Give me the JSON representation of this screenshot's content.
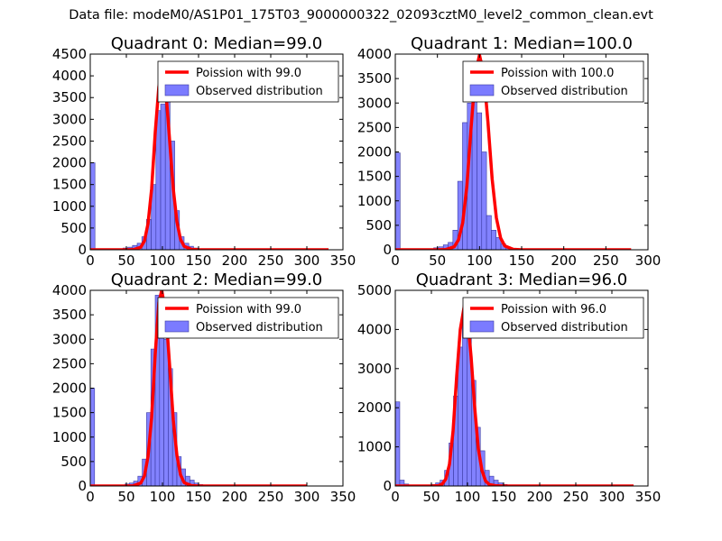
{
  "figure": {
    "suptitle": "Data file: modeM0/AS1P01_175T03_9000000322_02093cztM0_level2_common_clean.evt"
  },
  "colors": {
    "poisson_line": "#ff0000",
    "hist_fill": "#7b7bff",
    "hist_edge": "#3a3aa0"
  },
  "chart_data": [
    {
      "type": "bar",
      "title": "Quadrant 0: Median=99.0",
      "xlabel": "",
      "ylabel": "",
      "xlim": [
        0,
        350
      ],
      "ylim": [
        0,
        4500
      ],
      "xticks": [
        0,
        50,
        100,
        150,
        200,
        250,
        300,
        350
      ],
      "yticks": [
        0,
        500,
        1000,
        1500,
        2000,
        2500,
        3000,
        3500,
        4000,
        4500
      ],
      "legend_position": "top-right",
      "bin_width": 6.5,
      "series": [
        {
          "name": "Observed distribution",
          "type": "histogram",
          "x": [
            0,
            6.5,
            13,
            19.5,
            26,
            32.5,
            39,
            45.5,
            52,
            58.5,
            65,
            71.5,
            78,
            84.5,
            91,
            97.5,
            104,
            110.5,
            117,
            123.5,
            130,
            136.5,
            143,
            149.5,
            156,
            162.5,
            169,
            175.5
          ],
          "values": [
            2000,
            10,
            5,
            5,
            5,
            10,
            20,
            40,
            60,
            100,
            150,
            300,
            700,
            1500,
            3200,
            3350,
            3500,
            2500,
            900,
            300,
            150,
            80,
            40,
            20,
            10,
            5,
            3,
            2
          ]
        },
        {
          "name": "Poission with 99.0",
          "type": "line",
          "x": [
            0,
            50,
            60,
            70,
            75,
            80,
            85,
            90,
            95,
            99,
            105,
            110,
            115,
            120,
            125,
            130,
            140,
            150,
            200,
            250,
            300,
            330
          ],
          "values": [
            0,
            0,
            5,
            60,
            200,
            600,
            1400,
            2700,
            3750,
            4100,
            3600,
            2500,
            1400,
            650,
            240,
            80,
            10,
            0,
            0,
            0,
            0,
            0
          ]
        }
      ]
    },
    {
      "type": "bar",
      "title": "Quadrant 1: Median=100.0",
      "xlabel": "",
      "ylabel": "",
      "xlim": [
        0,
        300
      ],
      "ylim": [
        0,
        4000
      ],
      "xticks": [
        0,
        50,
        100,
        150,
        200,
        250,
        300
      ],
      "yticks": [
        0,
        500,
        1000,
        1500,
        2000,
        2500,
        3000,
        3500,
        4000
      ],
      "legend_position": "top-right",
      "bin_width": 5.7,
      "series": [
        {
          "name": "Observed distribution",
          "type": "histogram",
          "x": [
            0,
            5.7,
            11.4,
            17.1,
            22.8,
            28.5,
            34.2,
            39.9,
            45.6,
            51.3,
            57,
            62.7,
            68.4,
            74.1,
            79.8,
            85.5,
            91.2,
            96.9,
            102.6,
            108.3,
            114,
            119.7,
            125.4,
            131.1,
            136.8,
            142.5,
            148.2,
            153.9
          ],
          "values": [
            1980,
            10,
            5,
            5,
            5,
            5,
            10,
            20,
            40,
            60,
            100,
            150,
            400,
            1400,
            2600,
            3000,
            3500,
            2800,
            2000,
            700,
            400,
            250,
            120,
            60,
            30,
            15,
            8,
            5
          ]
        },
        {
          "name": "Poission with 100.0",
          "type": "line",
          "x": [
            0,
            50,
            60,
            70,
            75,
            80,
            85,
            90,
            95,
            100,
            105,
            110,
            115,
            120,
            125,
            130,
            140,
            150,
            200,
            280
          ],
          "values": [
            0,
            0,
            5,
            60,
            200,
            550,
            1300,
            2500,
            3600,
            3980,
            3600,
            2600,
            1450,
            650,
            240,
            80,
            10,
            0,
            0,
            0
          ]
        }
      ]
    },
    {
      "type": "bar",
      "title": "Quadrant 2: Median=99.0",
      "xlabel": "",
      "ylabel": "",
      "xlim": [
        0,
        350
      ],
      "ylim": [
        0,
        4000
      ],
      "xticks": [
        0,
        50,
        100,
        150,
        200,
        250,
        300,
        350
      ],
      "yticks": [
        0,
        500,
        1000,
        1500,
        2000,
        2500,
        3000,
        3500,
        4000
      ],
      "legend_position": "top-right",
      "bin_width": 6.0,
      "series": [
        {
          "name": "Observed distribution",
          "type": "histogram",
          "x": [
            0,
            6,
            12,
            18,
            24,
            30,
            36,
            42,
            48,
            54,
            60,
            66,
            72,
            78,
            84,
            90,
            96,
            102,
            108,
            114,
            120,
            126,
            132,
            138,
            144,
            150,
            156,
            162
          ],
          "values": [
            2000,
            10,
            5,
            5,
            5,
            5,
            10,
            20,
            40,
            60,
            100,
            200,
            550,
            1500,
            2800,
            3900,
            3700,
            3000,
            2400,
            1500,
            600,
            350,
            200,
            120,
            60,
            30,
            15,
            8
          ]
        },
        {
          "name": "Poission with 99.0",
          "type": "line",
          "x": [
            0,
            50,
            60,
            70,
            75,
            80,
            85,
            90,
            95,
            99,
            105,
            110,
            115,
            120,
            125,
            130,
            140,
            150,
            200,
            300
          ],
          "values": [
            0,
            0,
            5,
            60,
            200,
            600,
            1400,
            2700,
            3750,
            4000,
            3500,
            2450,
            1350,
            630,
            230,
            70,
            10,
            0,
            0,
            0
          ]
        }
      ]
    },
    {
      "type": "bar",
      "title": "Quadrant 3: Median=96.0",
      "xlabel": "",
      "ylabel": "",
      "xlim": [
        0,
        350
      ],
      "ylim": [
        0,
        5000
      ],
      "xticks": [
        0,
        50,
        100,
        150,
        200,
        250,
        300,
        350
      ],
      "yticks": [
        0,
        1000,
        2000,
        3000,
        4000,
        5000
      ],
      "legend_position": "top-right",
      "bin_width": 6.2,
      "series": [
        {
          "name": "Observed distribution",
          "type": "histogram",
          "x": [
            0,
            6.2,
            12.4,
            18.6,
            24.8,
            31,
            37.2,
            43.4,
            49.6,
            55.8,
            62,
            68.2,
            74.4,
            80.6,
            86.8,
            93,
            99.2,
            105.4,
            111.6,
            117.8,
            124,
            130.2,
            136.4,
            142.6,
            148.8,
            155,
            161.2,
            167.4
          ],
          "values": [
            2150,
            150,
            50,
            20,
            10,
            10,
            15,
            20,
            40,
            80,
            150,
            400,
            1100,
            2300,
            3550,
            4250,
            3900,
            2700,
            1500,
            900,
            400,
            250,
            150,
            80,
            40,
            20,
            10,
            5
          ]
        },
        {
          "name": "Poission with 96.0",
          "type": "line",
          "x": [
            0,
            50,
            60,
            65,
            70,
            75,
            80,
            85,
            90,
            96,
            100,
            105,
            110,
            115,
            120,
            125,
            130,
            140,
            150,
            200,
            250,
            300,
            330
          ],
          "values": [
            0,
            0,
            10,
            50,
            180,
            550,
            1400,
            2800,
            4000,
            4650,
            4300,
            3300,
            2000,
            950,
            400,
            130,
            40,
            5,
            0,
            0,
            0,
            0,
            0
          ]
        }
      ]
    }
  ]
}
